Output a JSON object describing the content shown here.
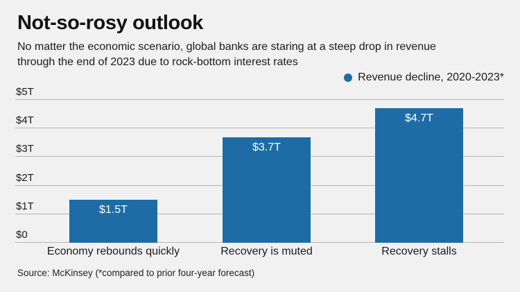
{
  "header": {
    "title": "Not-so-rosy outlook",
    "subtitle_lines": [
      "No matter the economic scenario, global banks are staring at a steep drop in revenue",
      "through the end of 2023 due to rock-bottom interest rates"
    ]
  },
  "legend": {
    "label": "Revenue decline, 2020-2023*",
    "marker_color": "#1d6ca5",
    "position": "top-right"
  },
  "chart_data": {
    "type": "bar",
    "title": "Not-so-rosy outlook",
    "categories": [
      "Economy rebounds quickly",
      "Recovery is muted",
      "Recovery stalls"
    ],
    "values": [
      1.5,
      3.7,
      4.7
    ],
    "value_labels": [
      "$1.5T",
      "$3.7T",
      "$4.7T"
    ],
    "series_name": "Revenue decline, 2020-2023*",
    "xlabel": "",
    "ylabel": "",
    "ylim": [
      0,
      5
    ],
    "yticks": [
      {
        "value": 0,
        "label": "$0"
      },
      {
        "value": 1,
        "label": "$1T"
      },
      {
        "value": 2,
        "label": "$2T"
      },
      {
        "value": 3,
        "label": "$3T"
      },
      {
        "value": 4,
        "label": "$4T"
      },
      {
        "value": 5,
        "label": "$5T"
      }
    ],
    "grid": "horizontal",
    "bar_color": "#1d6ca5",
    "value_label_color": "#ffffff",
    "background_color": "#f0f1f0",
    "gridline_color": "#b4b8b7"
  },
  "footer": {
    "source": "Source: McKinsey (*compared to prior four-year forecast)"
  }
}
